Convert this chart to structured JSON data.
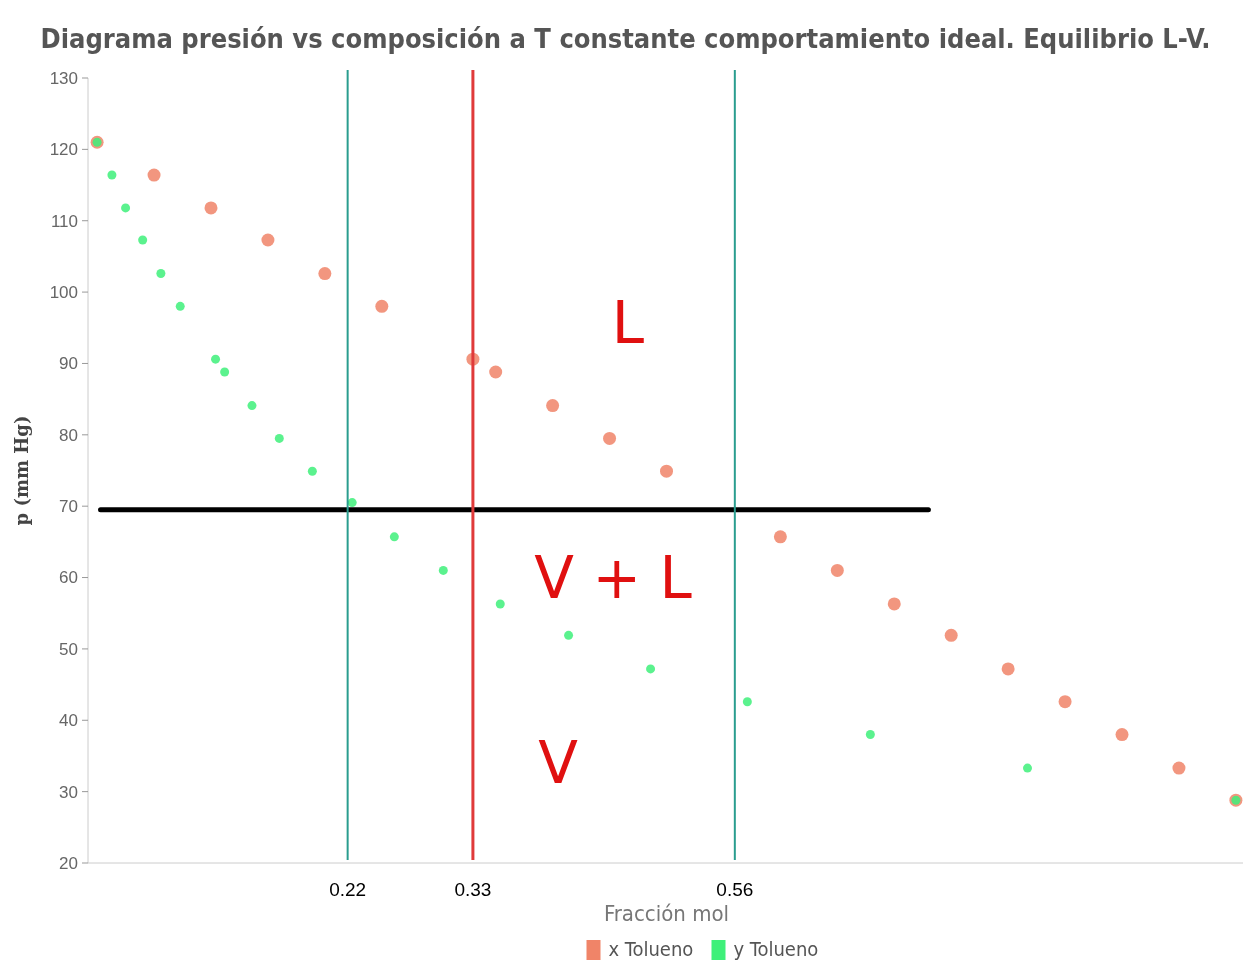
{
  "chart_data": {
    "type": "scatter",
    "title": "Diagrama presión vs composición a T constante comportamiento ideal. Equilibrio L-V.",
    "xlabel": "Fracción mol",
    "ylabel": "p (mm Hg)",
    "xlim": [
      -0.008,
      1.008
    ],
    "ylim": [
      20,
      130
    ],
    "xticks": [
      0.22,
      0.33,
      0.56
    ],
    "yticks": [
      20,
      30,
      40,
      50,
      60,
      70,
      80,
      90,
      100,
      110,
      120,
      130
    ],
    "grid": false,
    "legend": "bottom",
    "marker": "circle",
    "series": [
      {
        "name": "x Tolueno",
        "color": "#f08468",
        "x": [
          0,
          0.05,
          0.1,
          0.15,
          0.2,
          0.25,
          0.33,
          0.35,
          0.4,
          0.45,
          0.5,
          0.6,
          0.65,
          0.7,
          0.75,
          0.8,
          0.85,
          0.9,
          0.95,
          1.0
        ],
        "values": [
          121,
          116.4,
          111.8,
          107.3,
          102.6,
          98.0,
          90.6,
          88.8,
          84.1,
          79.5,
          74.9,
          65.7,
          61.0,
          56.3,
          51.9,
          47.2,
          42.6,
          38.0,
          33.3,
          28.8
        ]
      },
      {
        "name": "y Tolueno",
        "color": "#3ef07a",
        "x": [
          0,
          0.013,
          0.025,
          0.04,
          0.056,
          0.073,
          0.104,
          0.112,
          0.136,
          0.16,
          0.189,
          0.224,
          0.261,
          0.304,
          0.354,
          0.414,
          0.486,
          0.571,
          0.679,
          0.817,
          1.0
        ],
        "values": [
          121,
          116.4,
          111.8,
          107.3,
          102.6,
          98.0,
          90.6,
          88.8,
          84.1,
          79.5,
          74.9,
          70.5,
          65.7,
          61.0,
          56.3,
          51.9,
          47.2,
          42.6,
          38.0,
          33.3,
          28.8
        ]
      },
      {
        "type": "line",
        "marker": "none",
        "color": "#000000",
        "x": [
          0.003,
          0.73
        ],
        "values": [
          69.5,
          69.5
        ]
      }
    ],
    "ref_lines": [
      {
        "axis": "x",
        "value": 0.22,
        "color": "#2a9d8f"
      },
      {
        "axis": "x",
        "value": 0.33,
        "color": "#e03a3a"
      },
      {
        "axis": "x",
        "value": 0.56,
        "color": "#2a9d8f"
      }
    ],
    "annotations": [
      "L",
      "V + L",
      "V"
    ]
  }
}
